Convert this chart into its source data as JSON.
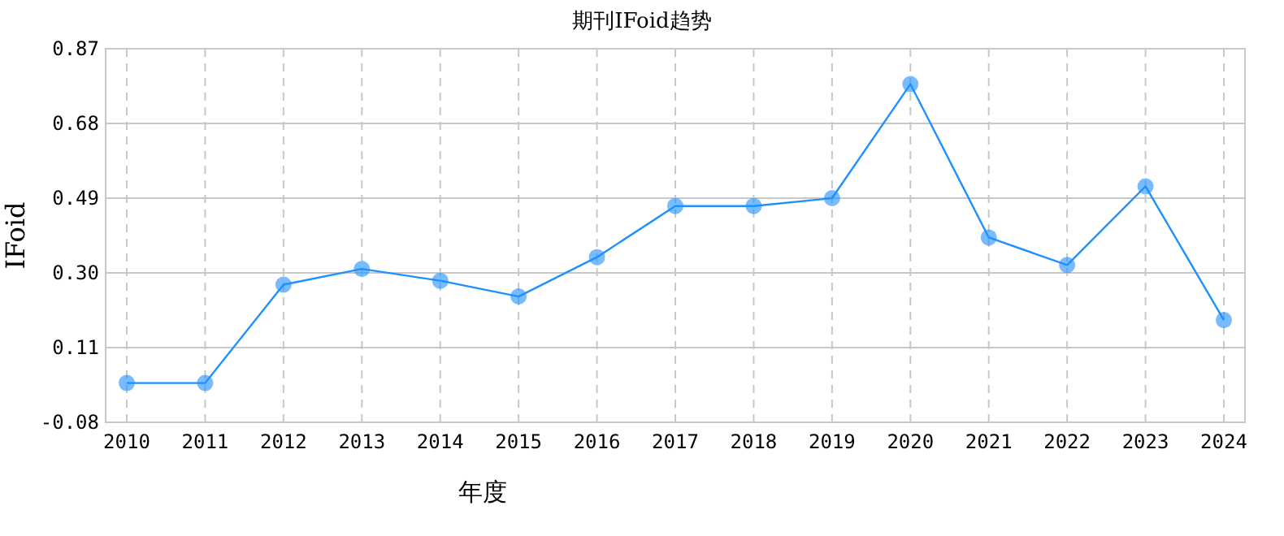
{
  "chart_data": {
    "type": "line",
    "title": "期刊IFoid趋势",
    "xlabel": "年度",
    "ylabel": "IFoid",
    "categories": [
      "2010",
      "2011",
      "2012",
      "2013",
      "2014",
      "2015",
      "2016",
      "2017",
      "2018",
      "2019",
      "2020",
      "2021",
      "2022",
      "2023",
      "2024"
    ],
    "series": [
      {
        "color": "#1e90ff",
        "values": [
          0.02,
          0.02,
          0.27,
          0.31,
          0.28,
          0.24,
          0.34,
          0.47,
          0.47,
          0.49,
          0.78,
          0.39,
          0.32,
          0.52,
          0.18
        ]
      }
    ],
    "ylim": [
      -0.08,
      0.87
    ],
    "yticks": [
      -0.08,
      0.11,
      {
        "value": 0.3,
        "label": "0.30"
      },
      0.49,
      0.68,
      0.87
    ],
    "grid": true,
    "marker": "circle",
    "line_style": "solid"
  }
}
